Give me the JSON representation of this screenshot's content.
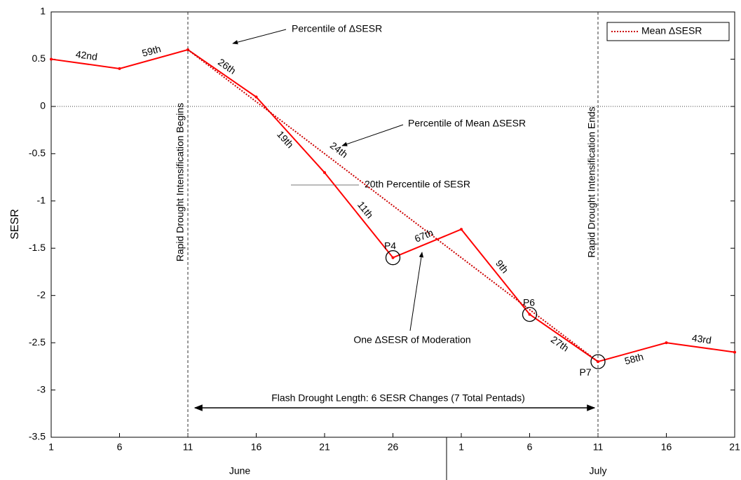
{
  "chart_data": {
    "type": "line",
    "y_label": "SESR",
    "categories": [
      "1",
      "6",
      "11",
      "16",
      "21",
      "26",
      "1",
      "6",
      "11",
      "16",
      "21"
    ],
    "months": [
      "June",
      "July"
    ],
    "series": [
      {
        "color": "#ff0000",
        "values": [
          0.5,
          0.4,
          0.6,
          0.1,
          -0.7,
          -1.6,
          -1.3,
          -2.2,
          -2.7,
          -2.5,
          -2.6
        ]
      },
      {
        "name": "Mean ΔSESR",
        "color": "#cc0000",
        "values": [
          null,
          null,
          0.6,
          0.05,
          -0.5,
          -1.05,
          -1.6,
          -2.15,
          -2.7,
          null,
          null
        ]
      }
    ],
    "segment_labels": [
      "42nd",
      "59th",
      "26th",
      "19th",
      "11th",
      "67th",
      "9th",
      "27th",
      "58th",
      "43rd"
    ],
    "mean_label": "24th",
    "ylim": [
      -3.5,
      1
    ],
    "yticks": [
      -3.5,
      -3,
      -2.5,
      -2,
      -1.5,
      -1,
      -0.5,
      0,
      0.5,
      1
    ],
    "legend": "upper right",
    "annotations": {
      "begins": "Rapid Drought Intensification Begins",
      "ends": "Rapid Drought Intensification Ends",
      "length": "Flash Drought Length: 6 SESR Changes (7 Total Pentads)",
      "pct": "Percentile of ΔSESR",
      "mean_pct": "Percentile of Mean ΔSESR",
      "p20": "20th Percentile of SESR",
      "moderation": "One ΔSESR of Moderation",
      "points": [
        "P4",
        "P6",
        "P7"
      ]
    }
  }
}
